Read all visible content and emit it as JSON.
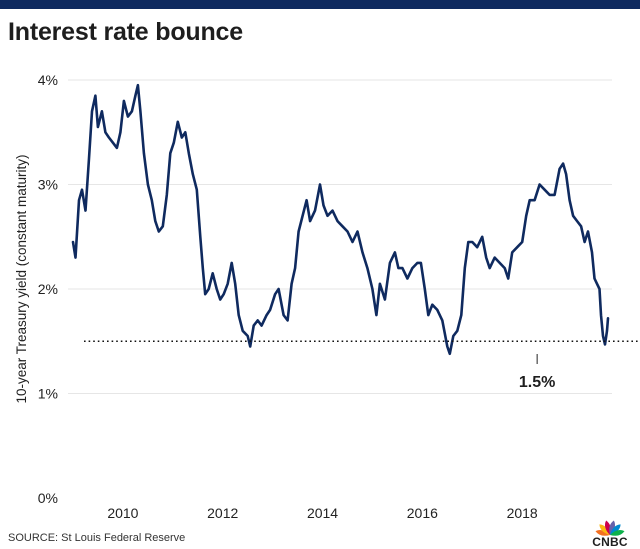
{
  "colors": {
    "top_bar": "#0f2a5f",
    "line": "#0f2a5f",
    "grid": "#e6e6e6",
    "text": "#222222",
    "peacock": [
      "#f37021",
      "#fcb711",
      "#cc004c",
      "#6460aa",
      "#0089d0",
      "#0db14b"
    ]
  },
  "header": {
    "title": "Interest rate bounce"
  },
  "footer": {
    "source": "SOURCE: St Louis Federal Reserve"
  },
  "logo": {
    "text": "CNBC",
    "icon": "cnbc-peacock-icon"
  },
  "chart_data": {
    "type": "line",
    "title": "Interest rate bounce",
    "xlabel": "",
    "ylabel": "10-year Treasury yield (constant maturity)",
    "xlim": [
      2008.9,
      2019.8
    ],
    "ylim": [
      0,
      4
    ],
    "x_ticks": [
      {
        "value": 2010,
        "label": "2010"
      },
      {
        "value": 2012,
        "label": "2012"
      },
      {
        "value": 2014,
        "label": "2014"
      },
      {
        "value": 2016,
        "label": "2016"
      },
      {
        "value": 2018,
        "label": "2018"
      }
    ],
    "y_ticks": [
      {
        "value": 0,
        "label": "0%"
      },
      {
        "value": 1,
        "label": "1%"
      },
      {
        "value": 2,
        "label": "2%"
      },
      {
        "value": 3,
        "label": "3%"
      },
      {
        "value": 4,
        "label": "4%"
      }
    ],
    "grid": "horizontal",
    "reference_line": {
      "value": 1.5,
      "style": "dotted"
    },
    "annotation": {
      "label": "1.5%",
      "x": 2018.3,
      "value": 1.5
    },
    "series": [
      {
        "name": "",
        "points": [
          [
            2009.0,
            2.45
          ],
          [
            2009.05,
            2.3
          ],
          [
            2009.12,
            2.85
          ],
          [
            2009.18,
            2.95
          ],
          [
            2009.25,
            2.75
          ],
          [
            2009.32,
            3.25
          ],
          [
            2009.38,
            3.7
          ],
          [
            2009.45,
            3.85
          ],
          [
            2009.5,
            3.55
          ],
          [
            2009.58,
            3.7
          ],
          [
            2009.65,
            3.5
          ],
          [
            2009.72,
            3.45
          ],
          [
            2009.8,
            3.4
          ],
          [
            2009.88,
            3.35
          ],
          [
            2009.95,
            3.5
          ],
          [
            2010.02,
            3.8
          ],
          [
            2010.1,
            3.65
          ],
          [
            2010.18,
            3.7
          ],
          [
            2010.25,
            3.85
          ],
          [
            2010.3,
            3.95
          ],
          [
            2010.35,
            3.7
          ],
          [
            2010.42,
            3.3
          ],
          [
            2010.5,
            3.0
          ],
          [
            2010.58,
            2.85
          ],
          [
            2010.65,
            2.65
          ],
          [
            2010.72,
            2.55
          ],
          [
            2010.8,
            2.6
          ],
          [
            2010.88,
            2.9
          ],
          [
            2010.95,
            3.3
          ],
          [
            2011.02,
            3.4
          ],
          [
            2011.1,
            3.6
          ],
          [
            2011.18,
            3.45
          ],
          [
            2011.25,
            3.5
          ],
          [
            2011.32,
            3.3
          ],
          [
            2011.4,
            3.1
          ],
          [
            2011.48,
            2.95
          ],
          [
            2011.55,
            2.5
          ],
          [
            2011.6,
            2.2
          ],
          [
            2011.65,
            1.95
          ],
          [
            2011.72,
            2.0
          ],
          [
            2011.8,
            2.15
          ],
          [
            2011.88,
            2.0
          ],
          [
            2011.95,
            1.9
          ],
          [
            2012.02,
            1.95
          ],
          [
            2012.1,
            2.05
          ],
          [
            2012.18,
            2.25
          ],
          [
            2012.25,
            2.05
          ],
          [
            2012.32,
            1.75
          ],
          [
            2012.4,
            1.6
          ],
          [
            2012.5,
            1.55
          ],
          [
            2012.55,
            1.45
          ],
          [
            2012.62,
            1.65
          ],
          [
            2012.7,
            1.7
          ],
          [
            2012.78,
            1.65
          ],
          [
            2012.88,
            1.75
          ],
          [
            2012.95,
            1.8
          ],
          [
            2013.05,
            1.95
          ],
          [
            2013.12,
            2.0
          ],
          [
            2013.22,
            1.75
          ],
          [
            2013.3,
            1.7
          ],
          [
            2013.38,
            2.05
          ],
          [
            2013.45,
            2.2
          ],
          [
            2013.52,
            2.55
          ],
          [
            2013.6,
            2.7
          ],
          [
            2013.68,
            2.85
          ],
          [
            2013.75,
            2.65
          ],
          [
            2013.85,
            2.75
          ],
          [
            2013.95,
            3.0
          ],
          [
            2014.02,
            2.8
          ],
          [
            2014.1,
            2.7
          ],
          [
            2014.2,
            2.75
          ],
          [
            2014.3,
            2.65
          ],
          [
            2014.4,
            2.6
          ],
          [
            2014.5,
            2.55
          ],
          [
            2014.6,
            2.45
          ],
          [
            2014.7,
            2.55
          ],
          [
            2014.8,
            2.35
          ],
          [
            2014.9,
            2.2
          ],
          [
            2015.0,
            2.0
          ],
          [
            2015.08,
            1.75
          ],
          [
            2015.15,
            2.05
          ],
          [
            2015.25,
            1.9
          ],
          [
            2015.35,
            2.25
          ],
          [
            2015.45,
            2.35
          ],
          [
            2015.52,
            2.2
          ],
          [
            2015.6,
            2.2
          ],
          [
            2015.7,
            2.1
          ],
          [
            2015.8,
            2.2
          ],
          [
            2015.9,
            2.25
          ],
          [
            2015.97,
            2.25
          ],
          [
            2016.05,
            2.0
          ],
          [
            2016.12,
            1.75
          ],
          [
            2016.2,
            1.85
          ],
          [
            2016.3,
            1.8
          ],
          [
            2016.4,
            1.7
          ],
          [
            2016.5,
            1.45
          ],
          [
            2016.55,
            1.38
          ],
          [
            2016.62,
            1.55
          ],
          [
            2016.7,
            1.6
          ],
          [
            2016.78,
            1.75
          ],
          [
            2016.85,
            2.2
          ],
          [
            2016.92,
            2.45
          ],
          [
            2017.0,
            2.45
          ],
          [
            2017.1,
            2.4
          ],
          [
            2017.2,
            2.5
          ],
          [
            2017.28,
            2.3
          ],
          [
            2017.35,
            2.2
          ],
          [
            2017.45,
            2.3
          ],
          [
            2017.55,
            2.25
          ],
          [
            2017.65,
            2.2
          ],
          [
            2017.72,
            2.1
          ],
          [
            2017.8,
            2.35
          ],
          [
            2017.9,
            2.4
          ],
          [
            2018.0,
            2.45
          ],
          [
            2018.08,
            2.7
          ],
          [
            2018.15,
            2.85
          ],
          [
            2018.25,
            2.85
          ],
          [
            2018.35,
            3.0
          ],
          [
            2018.45,
            2.95
          ],
          [
            2018.55,
            2.9
          ],
          [
            2018.65,
            2.9
          ],
          [
            2018.75,
            3.15
          ],
          [
            2018.82,
            3.2
          ],
          [
            2018.88,
            3.1
          ],
          [
            2018.95,
            2.85
          ],
          [
            2019.02,
            2.7
          ],
          [
            2019.1,
            2.65
          ],
          [
            2019.18,
            2.6
          ],
          [
            2019.25,
            2.45
          ],
          [
            2019.32,
            2.55
          ],
          [
            2019.4,
            2.35
          ],
          [
            2019.45,
            2.1
          ],
          [
            2019.5,
            2.05
          ],
          [
            2019.55,
            2.0
          ],
          [
            2019.58,
            1.75
          ],
          [
            2019.62,
            1.55
          ],
          [
            2019.66,
            1.47
          ],
          [
            2019.7,
            1.6
          ],
          [
            2019.72,
            1.72
          ]
        ]
      }
    ]
  }
}
